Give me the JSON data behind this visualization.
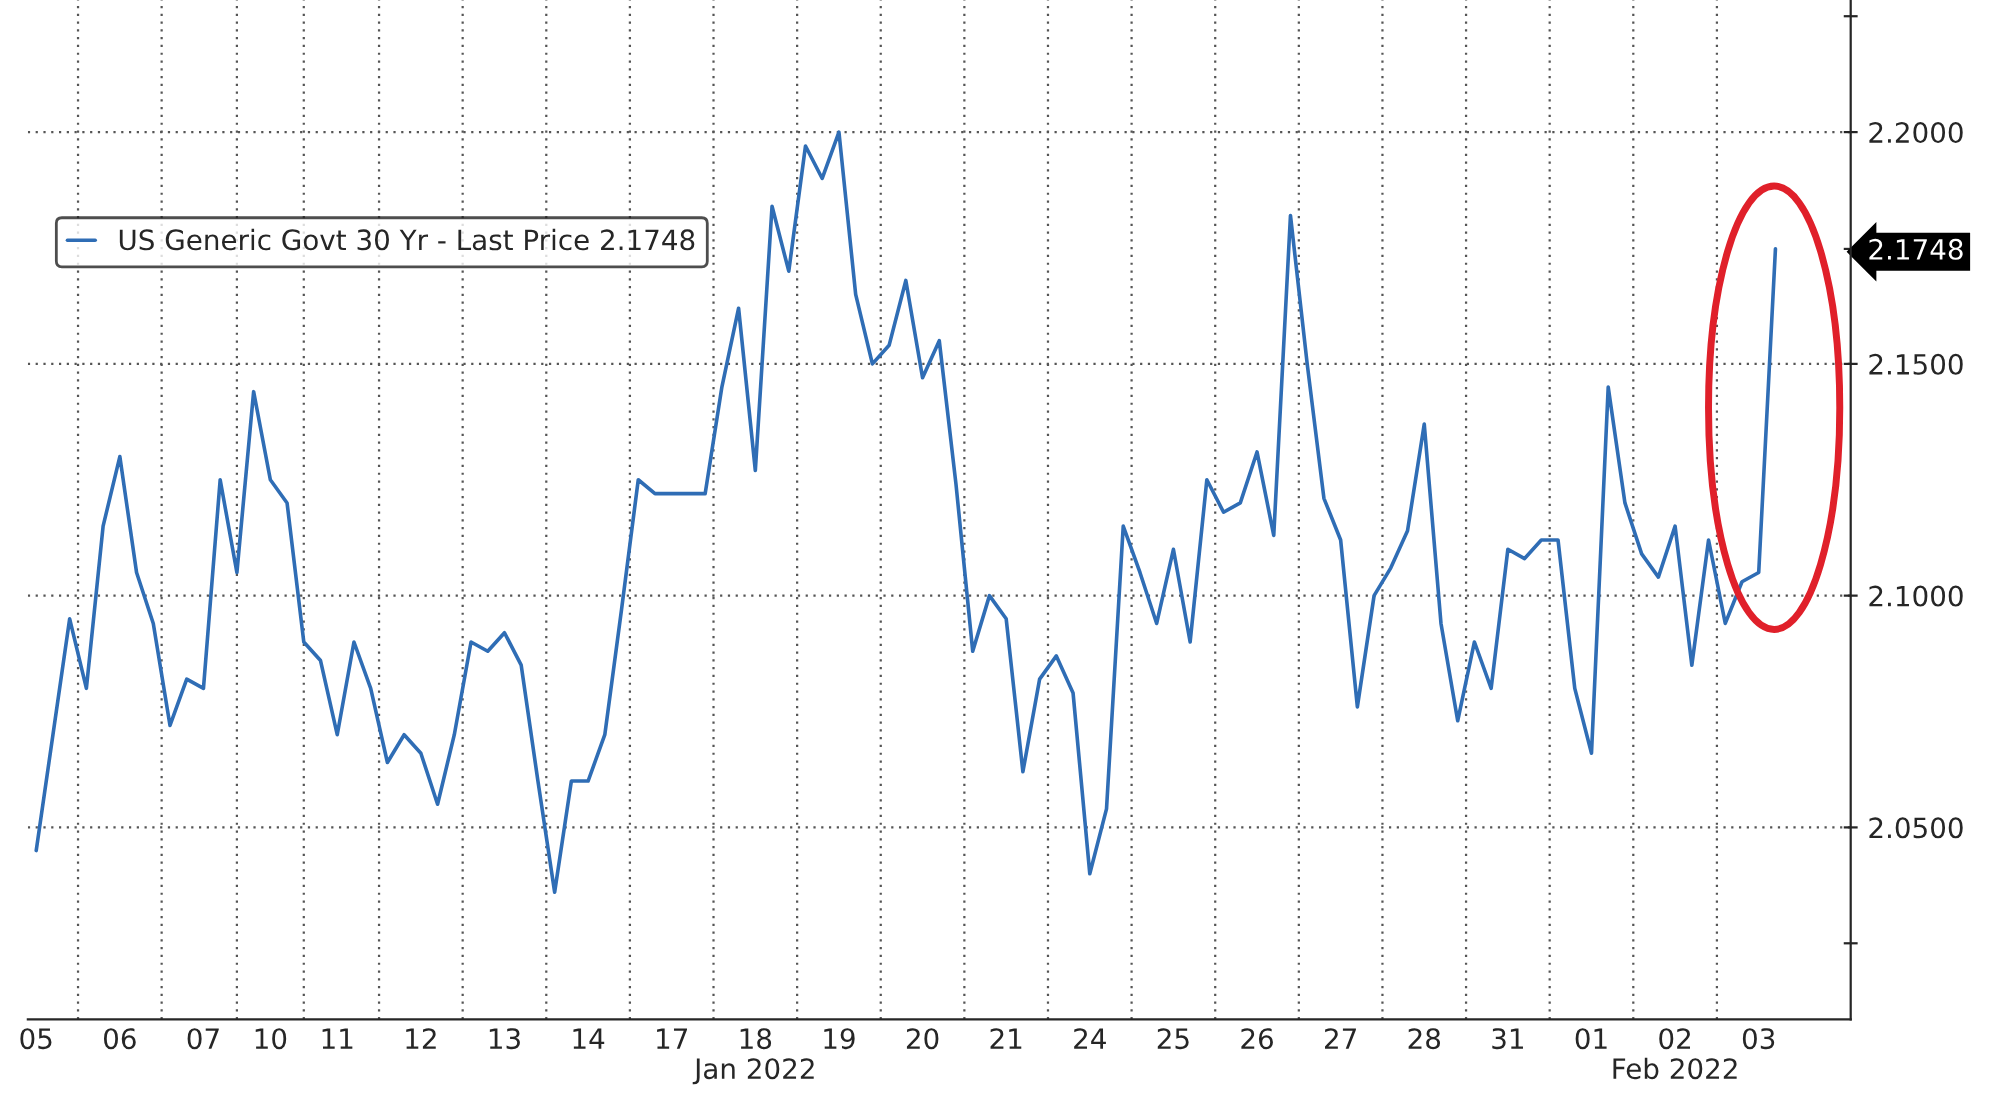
{
  "chart_data": {
    "type": "line",
    "categories": [
      "05",
      null,
      null,
      null,
      null,
      "06",
      null,
      null,
      null,
      null,
      "07",
      null,
      null,
      null,
      "10",
      null,
      null,
      null,
      "11",
      null,
      null,
      null,
      null,
      "12",
      null,
      null,
      null,
      null,
      "13",
      null,
      null,
      null,
      null,
      "14",
      null,
      null,
      null,
      null,
      "17",
      null,
      null,
      null,
      null,
      "18\nJan 2022",
      null,
      null,
      null,
      null,
      "19",
      null,
      null,
      null,
      null,
      "20",
      null,
      null,
      null,
      null,
      "21",
      null,
      null,
      null,
      null,
      "24",
      null,
      null,
      null,
      null,
      "25",
      null,
      null,
      null,
      null,
      "26",
      null,
      null,
      null,
      null,
      "27",
      null,
      null,
      null,
      null,
      "28",
      null,
      null,
      null,
      null,
      "31",
      null,
      null,
      null,
      null,
      "01",
      null,
      null,
      null,
      null,
      "02\nFeb 2022",
      null,
      null,
      null,
      null,
      "03",
      null,
      null,
      null,
      null,
      null
    ],
    "series": [
      {
        "name": "US Generic Govt 30 Yr - Last Price 2.1748",
        "color": "#2f6db5",
        "values": [
          2.045,
          2.07,
          2.095,
          2.08,
          2.115,
          2.13,
          2.105,
          2.094,
          2.072,
          2.082,
          2.08,
          2.125,
          2.105,
          2.144,
          2.125,
          2.12,
          2.09,
          2.086,
          2.07,
          2.09,
          2.08,
          2.064,
          2.07,
          2.066,
          2.055,
          2.07,
          2.09,
          2.088,
          2.092,
          2.085,
          2.06,
          2.036,
          2.06,
          2.06,
          2.07,
          2.097,
          2.125,
          2.122,
          2.122,
          2.122,
          2.122,
          2.145,
          2.162,
          2.127,
          2.184,
          2.17,
          2.197,
          2.19,
          2.2,
          2.165,
          2.15,
          2.154,
          2.168,
          2.147,
          2.155,
          2.124,
          2.088,
          2.1,
          2.095,
          2.062,
          2.082,
          2.087,
          2.079,
          2.04,
          2.054,
          2.115,
          2.105,
          2.094,
          2.11,
          2.09,
          2.125,
          2.118,
          2.12,
          2.131,
          2.113,
          2.182,
          2.15,
          2.121,
          2.112,
          2.076,
          2.1,
          2.106,
          2.114,
          2.137,
          2.094,
          2.073,
          2.09,
          2.08,
          2.11,
          2.108,
          2.112,
          2.112,
          2.08,
          2.066,
          2.145,
          2.12,
          2.109,
          2.104,
          2.115,
          2.085,
          2.112,
          2.094,
          2.103,
          2.105,
          2.1748,
          null,
          null,
          null,
          null
        ]
      }
    ],
    "ylim": [
      2.0086,
      2.2285
    ],
    "yticks": [
      {
        "value": 2.025,
        "label": null
      },
      {
        "value": 2.05,
        "label": "2.0500"
      },
      {
        "value": 2.1,
        "label": "2.1000"
      },
      {
        "value": 2.15,
        "label": "2.1500"
      },
      {
        "value": 2.1748,
        "label": "2.1748"
      },
      {
        "value": 2.2,
        "label": "2.2000"
      },
      {
        "value": 2.225,
        "label": null
      }
    ],
    "grid": true,
    "legend": "top left"
  }
}
